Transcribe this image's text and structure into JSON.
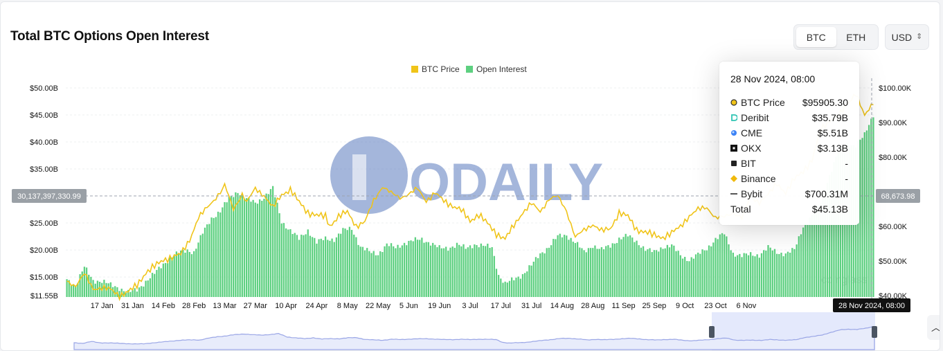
{
  "header": {
    "title": "Total BTC Options Open Interest"
  },
  "asset_tabs": [
    {
      "label": "BTC",
      "active": true
    },
    {
      "label": "ETH",
      "active": false
    }
  ],
  "currency": {
    "label": "USD"
  },
  "watermark": {
    "text": "ODAILY",
    "sub_text": "coinglass"
  },
  "crosshair": {
    "left_label": "30,137,397,330.99",
    "right_label": "68,673.98",
    "x_label": "28 Nov 2024, 08:00"
  },
  "tooltip": {
    "date": "28 Nov 2024, 08:00",
    "rows": [
      {
        "name": "BTC Price",
        "value": "$95905.30",
        "icon": "btc-price-dot-icon"
      },
      {
        "name": "Deribit",
        "value": "$35.79B",
        "icon": "deribit-icon"
      },
      {
        "name": "CME",
        "value": "$5.51B",
        "icon": "cme-icon"
      },
      {
        "name": "OKX",
        "value": "$3.13B",
        "icon": "okx-icon"
      },
      {
        "name": "BIT",
        "value": "-",
        "icon": "bit-icon"
      },
      {
        "name": "Binance",
        "value": "-",
        "icon": "binance-icon"
      },
      {
        "name": "Bybit",
        "value": "$700.31M",
        "icon": "bybit-icon"
      },
      {
        "name": "Total",
        "value": "$45.13B",
        "icon": ""
      }
    ]
  },
  "colors": {
    "btc_price": "#f0c419",
    "open_interest": "#5dd080",
    "navigator": "#9aa6e6"
  },
  "chart_data": {
    "type": "bar",
    "legend": [
      "BTC Price",
      "Open Interest"
    ],
    "legend_position": "top-center",
    "x_tick_labels": [
      "17 Jan",
      "31 Jan",
      "14 Feb",
      "28 Feb",
      "13 Mar",
      "27 Mar",
      "10 Apr",
      "24 Apr",
      "8 May",
      "22 May",
      "5 Jun",
      "19 Jun",
      "3 Jul",
      "17 Jul",
      "31 Jul",
      "14 Aug",
      "28 Aug",
      "11 Sep",
      "25 Sep",
      "9 Oct",
      "23 Oct",
      "6 Nov"
    ],
    "y_left_ticks": [
      "$11.55B",
      "$15.00B",
      "$20.00B",
      "$25.00B",
      "$35.00B",
      "$40.00B",
      "$45.00B",
      "$50.00B"
    ],
    "y_left_tick_values": [
      11.55,
      15,
      20,
      25,
      35,
      40,
      45,
      50
    ],
    "y_right_ticks": [
      "$40.00K",
      "$50.00K",
      "$60.00K",
      "$80.00K",
      "$90.00K",
      "$100.00K"
    ],
    "y_right_tick_values": [
      40,
      50,
      60,
      80,
      90,
      100
    ],
    "y_left_range": [
      11.55,
      50
    ],
    "y_right_range": [
      40,
      100
    ],
    "grid": true,
    "series": [
      {
        "name": "Open Interest",
        "unit": "USD billions",
        "keypoints": [
          [
            0,
            14.6
          ],
          [
            4,
            13.4
          ],
          [
            8,
            16.8
          ],
          [
            12,
            14.4
          ],
          [
            16,
            14.2
          ],
          [
            20,
            13.5
          ],
          [
            24,
            13.0
          ],
          [
            28,
            12.1
          ],
          [
            32,
            12.6
          ],
          [
            36,
            14.2
          ],
          [
            40,
            15.6
          ],
          [
            44,
            17.4
          ],
          [
            48,
            18.8
          ],
          [
            52,
            19.6
          ],
          [
            55,
            20.0
          ],
          [
            58,
            19.6
          ],
          [
            62,
            23.1
          ],
          [
            66,
            25.9
          ],
          [
            70,
            27.2
          ],
          [
            74,
            29.5
          ],
          [
            78,
            30.9
          ],
          [
            82,
            29.4
          ],
          [
            86,
            28.7
          ],
          [
            90,
            29.8
          ],
          [
            94,
            31.4
          ],
          [
            98,
            25.3
          ],
          [
            102,
            23.6
          ],
          [
            106,
            22.0
          ],
          [
            110,
            23.7
          ],
          [
            114,
            21.4
          ],
          [
            118,
            22.1
          ],
          [
            122,
            22.0
          ],
          [
            126,
            23.6
          ],
          [
            130,
            24.0
          ],
          [
            134,
            20.6
          ],
          [
            138,
            19.6
          ],
          [
            142,
            19.3
          ],
          [
            146,
            21.0
          ],
          [
            150,
            20.4
          ],
          [
            154,
            21.3
          ],
          [
            158,
            21.7
          ],
          [
            162,
            22.0
          ],
          [
            166,
            21.3
          ],
          [
            170,
            20.3
          ],
          [
            174,
            20.4
          ],
          [
            178,
            21.0
          ],
          [
            182,
            20.3
          ],
          [
            186,
            21.1
          ],
          [
            190,
            20.7
          ],
          [
            194,
            20.5
          ],
          [
            197,
            15.4
          ],
          [
            200,
            13.7
          ],
          [
            204,
            14.6
          ],
          [
            208,
            15.5
          ],
          [
            212,
            17.1
          ],
          [
            216,
            19.3
          ],
          [
            220,
            20.6
          ],
          [
            224,
            22.5
          ],
          [
            228,
            22.8
          ],
          [
            232,
            21.4
          ],
          [
            236,
            19.6
          ],
          [
            240,
            20.9
          ],
          [
            244,
            20.0
          ],
          [
            248,
            20.8
          ],
          [
            252,
            22.1
          ],
          [
            256,
            22.6
          ],
          [
            260,
            21.6
          ],
          [
            264,
            20.1
          ],
          [
            268,
            19.6
          ],
          [
            272,
            20.6
          ],
          [
            276,
            20.8
          ],
          [
            280,
            19.0
          ],
          [
            284,
            18.2
          ],
          [
            288,
            19.1
          ],
          [
            292,
            20.3
          ],
          [
            296,
            22.0
          ],
          [
            300,
            23.0
          ],
          [
            304,
            19.4
          ],
          [
            308,
            18.9
          ],
          [
            312,
            19.2
          ],
          [
            316,
            19.1
          ],
          [
            320,
            20.4
          ],
          [
            324,
            19.6
          ],
          [
            328,
            19.3
          ],
          [
            332,
            20.0
          ],
          [
            336,
            24.4
          ],
          [
            340,
            26.3
          ],
          [
            344,
            28.8
          ],
          [
            348,
            33.9
          ],
          [
            352,
            38.2
          ],
          [
            356,
            39.6
          ],
          [
            360,
            39.4
          ],
          [
            364,
            41.2
          ],
          [
            368,
            45.1
          ]
        ]
      },
      {
        "name": "BTC Price",
        "unit": "USD thousands",
        "keypoints": [
          [
            0,
            44.2
          ],
          [
            4,
            42.8
          ],
          [
            8,
            46.3
          ],
          [
            12,
            42.0
          ],
          [
            16,
            42.2
          ],
          [
            20,
            41.8
          ],
          [
            24,
            40.0
          ],
          [
            28,
            41.1
          ],
          [
            32,
            43.0
          ],
          [
            36,
            46.6
          ],
          [
            40,
            48.5
          ],
          [
            44,
            50.3
          ],
          [
            48,
            51.1
          ],
          [
            52,
            52.0
          ],
          [
            56,
            56.1
          ],
          [
            60,
            62.4
          ],
          [
            64,
            65.5
          ],
          [
            68,
            68.3
          ],
          [
            71,
            70.6
          ],
          [
            72,
            71.9
          ],
          [
            76,
            65.0
          ],
          [
            80,
            69.3
          ],
          [
            82,
            66.9
          ],
          [
            86,
            71.0
          ],
          [
            90,
            68.9
          ],
          [
            94,
            65.4
          ],
          [
            98,
            69.2
          ],
          [
            102,
            70.6
          ],
          [
            106,
            67.0
          ],
          [
            110,
            64.0
          ],
          [
            114,
            63.2
          ],
          [
            118,
            62.9
          ],
          [
            120,
            60.1
          ],
          [
            124,
            62.9
          ],
          [
            128,
            64.2
          ],
          [
            132,
            60.1
          ],
          [
            136,
            61.3
          ],
          [
            140,
            67.5
          ],
          [
            144,
            71.5
          ],
          [
            148,
            69.6
          ],
          [
            152,
            68.3
          ],
          [
            156,
            69.3
          ],
          [
            160,
            70.9
          ],
          [
            164,
            67.4
          ],
          [
            168,
            69.6
          ],
          [
            172,
            67.4
          ],
          [
            176,
            65.9
          ],
          [
            180,
            64.7
          ],
          [
            184,
            61.6
          ],
          [
            188,
            63.4
          ],
          [
            192,
            60.8
          ],
          [
            196,
            57.9
          ],
          [
            200,
            56.4
          ],
          [
            204,
            60.3
          ],
          [
            208,
            64.0
          ],
          [
            212,
            66.6
          ],
          [
            216,
            64.3
          ],
          [
            220,
            67.9
          ],
          [
            224,
            68.7
          ],
          [
            228,
            64.5
          ],
          [
            232,
            56.9
          ],
          [
            236,
            58.9
          ],
          [
            240,
            60.6
          ],
          [
            244,
            58.7
          ],
          [
            248,
            59.3
          ],
          [
            252,
            64.0
          ],
          [
            256,
            62.9
          ],
          [
            260,
            59.0
          ],
          [
            264,
            58.4
          ],
          [
            268,
            57.4
          ],
          [
            272,
            56.8
          ],
          [
            276,
            58.1
          ],
          [
            280,
            60.0
          ],
          [
            284,
            63.0
          ],
          [
            288,
            64.9
          ],
          [
            292,
            65.5
          ],
          [
            296,
            62.5
          ],
          [
            300,
            62.7
          ],
          [
            304,
            64.0
          ],
          [
            308,
            62.5
          ],
          [
            312,
            68.5
          ],
          [
            316,
            67.0
          ],
          [
            320,
            69.1
          ],
          [
            324,
            72.5
          ],
          [
            328,
            69.7
          ],
          [
            332,
            73.7
          ],
          [
            336,
            76.1
          ],
          [
            340,
            79.0
          ],
          [
            344,
            88.0
          ],
          [
            348,
            90.6
          ],
          [
            352,
            91.6
          ],
          [
            356,
            95.4
          ],
          [
            360,
            98.5
          ],
          [
            364,
            91.8
          ],
          [
            368,
            95.9
          ]
        ]
      }
    ]
  }
}
